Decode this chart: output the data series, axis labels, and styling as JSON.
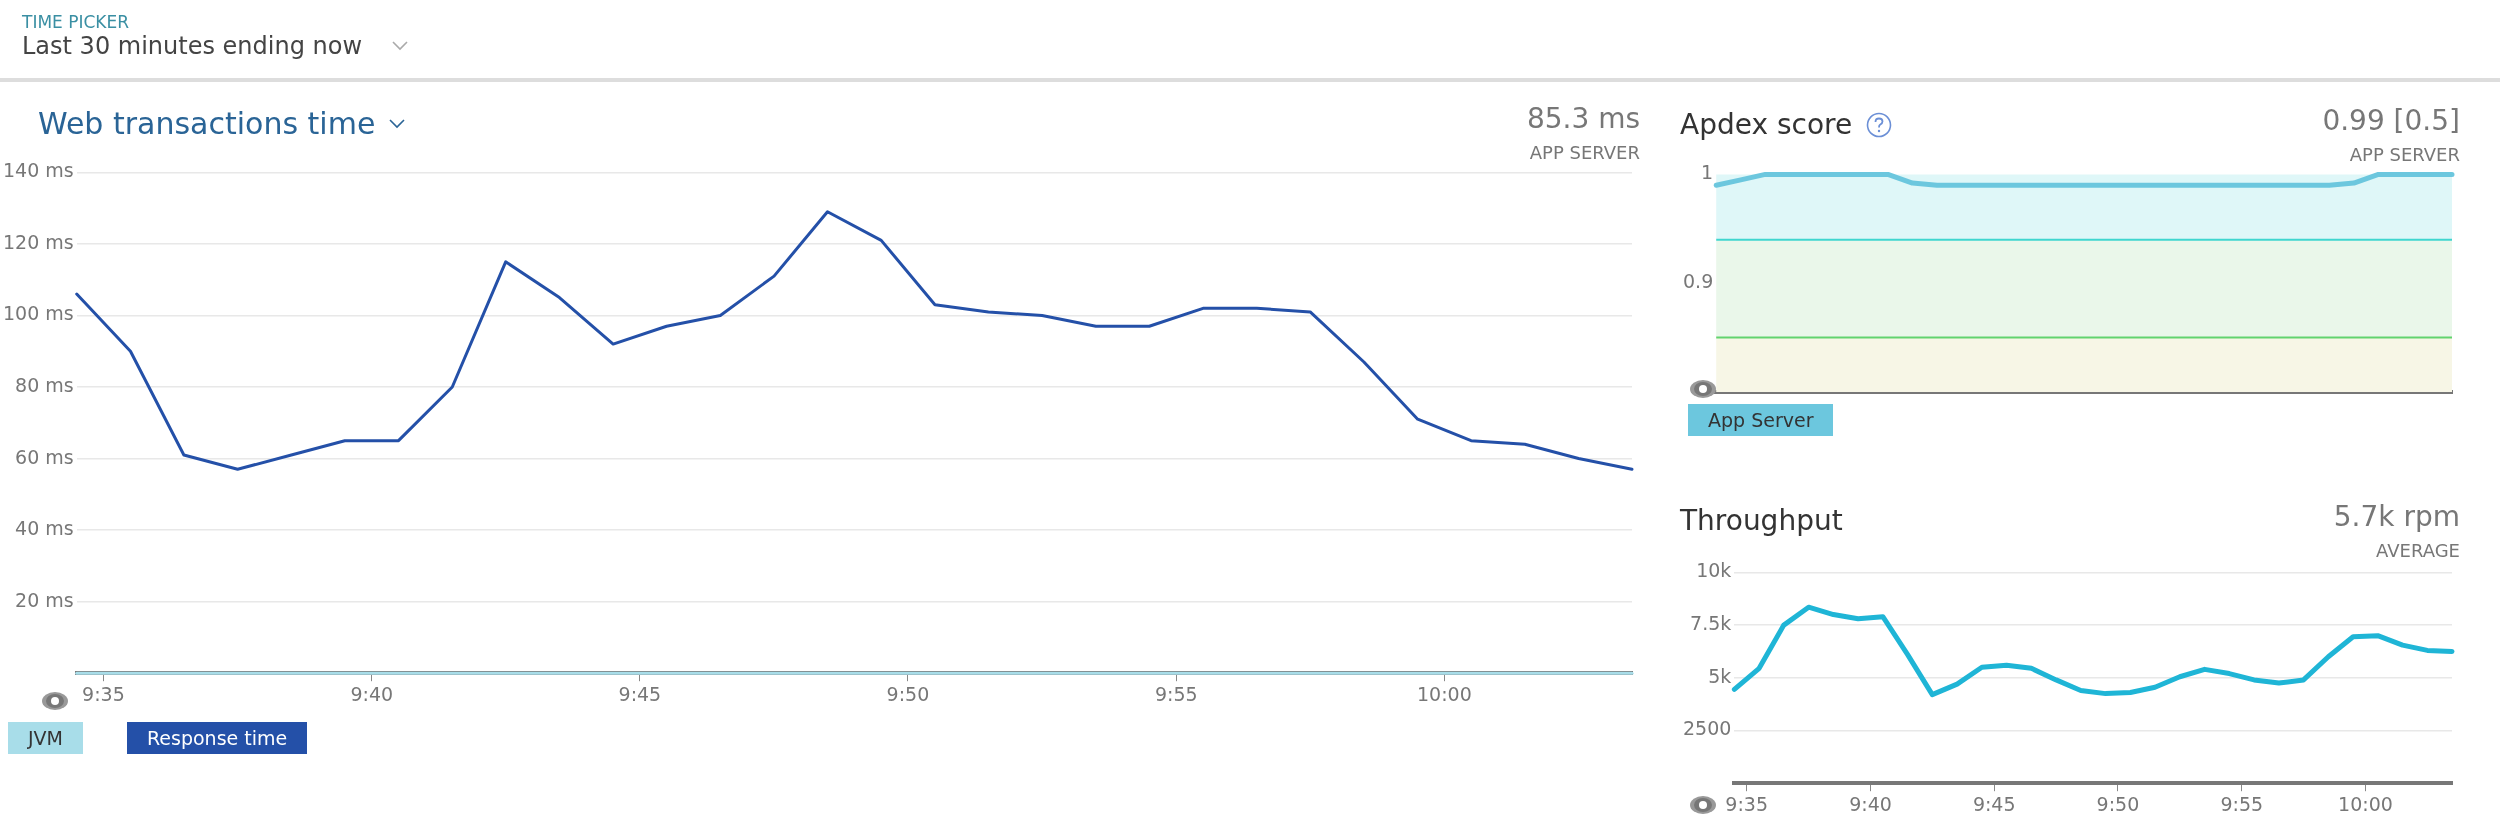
{
  "chart_data": [
    {
      "type": "other",
      "title": "TIME PICKER",
      "subtitle": "Last 30 minutes ending now"
    },
    {
      "type": "line",
      "title": "Web transactions time",
      "annotations": [
        "85.3 ms",
        "APP SERVER"
      ],
      "x": [
        9.575,
        9.5917,
        9.6083,
        9.625,
        9.6417,
        9.6583,
        9.675,
        9.6917,
        9.7083,
        9.725,
        9.7417,
        9.7583,
        9.775,
        9.7917,
        9.8083,
        9.825,
        9.8417,
        9.8583,
        9.875,
        9.8917,
        9.9083,
        9.925,
        9.9417,
        9.9583,
        9.975,
        9.9917,
        10.0083,
        10.025,
        10.0417,
        10.0583
      ],
      "xlim": [
        9.575,
        10.0583
      ],
      "xticks": [
        {
          "value": 9.5833,
          "label": "9:35"
        },
        {
          "value": 9.6667,
          "label": "9:40"
        },
        {
          "value": 9.75,
          "label": "9:45"
        },
        {
          "value": 9.8333,
          "label": "9:50"
        },
        {
          "value": 9.9167,
          "label": "9:55"
        },
        {
          "value": 10,
          "label": "10:00"
        }
      ],
      "ylim": [
        0,
        140
      ],
      "yticks": [
        {
          "value": 20,
          "label": "20 ms"
        },
        {
          "value": 40,
          "label": "40 ms"
        },
        {
          "value": 60,
          "label": "60 ms"
        },
        {
          "value": 80,
          "label": "80 ms"
        },
        {
          "value": 100,
          "label": "100 ms"
        },
        {
          "value": 120,
          "label": "120 ms"
        },
        {
          "value": 140,
          "label": "140 ms"
        }
      ],
      "grid": "y",
      "legend": "bottom left",
      "series": [
        {
          "name": "JVM",
          "color": "#a8dde9",
          "values": [
            0,
            0,
            0,
            0,
            0,
            0,
            0,
            0,
            0,
            0,
            0,
            0,
            0,
            0,
            0,
            0,
            0,
            0,
            0,
            0,
            0,
            0,
            0,
            0,
            0,
            0,
            0,
            0,
            0,
            0
          ]
        },
        {
          "name": "Response time",
          "color": "#2450a8",
          "values": [
            106,
            90,
            61,
            57,
            61,
            65,
            65,
            80,
            115,
            105,
            92,
            97,
            100,
            111,
            129,
            121,
            103,
            101,
            100,
            97,
            97,
            102,
            102,
            101,
            87,
            71,
            65,
            64,
            60,
            57
          ]
        }
      ]
    },
    {
      "type": "line",
      "title": "Apdex score",
      "annotations": [
        "0.99 [0.5]",
        "APP SERVER"
      ],
      "categories": [
        null,
        null,
        null,
        null,
        null,
        null,
        null,
        null,
        null,
        null,
        null,
        null,
        null,
        null,
        null,
        null,
        null,
        null,
        null,
        null,
        null,
        null,
        null,
        null,
        null,
        null,
        null,
        null,
        null,
        null,
        null
      ],
      "ylim": [
        0.8,
        1
      ],
      "yticks": [
        0.9,
        1
      ],
      "tick_labels": "y",
      "legend": "bottom left",
      "bands": [
        {
          "axis": "y",
          "from": 0.94,
          "to": 1,
          "color": "#dff7f8"
        },
        {
          "axis": "y",
          "from": 0.85,
          "to": 0.94,
          "color": "#eaf7ea"
        },
        {
          "axis": "y",
          "from": 0.8,
          "to": 0.85,
          "color": "#f7f6e6"
        }
      ],
      "ref_lines": [
        {
          "axis": "y",
          "value": 0.94,
          "color": "#3fd6cf"
        },
        {
          "axis": "y",
          "value": 0.85,
          "color": "#62d36e"
        }
      ],
      "series": [
        {
          "name": "App Server",
          "color": "#6cc7de",
          "values": [
            0.99,
            0.995,
            1,
            1,
            1,
            1,
            1,
            1,
            0.992,
            0.99,
            0.99,
            0.99,
            0.99,
            0.99,
            0.99,
            0.99,
            0.99,
            0.99,
            0.99,
            0.99,
            0.99,
            0.99,
            0.99,
            0.99,
            0.99,
            0.99,
            0.992,
            1,
            1,
            1,
            1
          ]
        }
      ]
    },
    {
      "type": "line",
      "title": "Throughput",
      "annotations": [
        "5.7k rpm",
        "AVERAGE"
      ],
      "x": [
        9.575,
        9.5917,
        9.6083,
        9.625,
        9.6417,
        9.6583,
        9.675,
        9.6917,
        9.7083,
        9.725,
        9.7417,
        9.7583,
        9.775,
        9.7917,
        9.8083,
        9.825,
        9.8417,
        9.8583,
        9.875,
        9.8917,
        9.9083,
        9.925,
        9.9417,
        9.9583,
        9.975,
        9.9917,
        10.0083,
        10.025,
        10.0417,
        10.0583
      ],
      "xlim": [
        9.575,
        10.0583
      ],
      "xticks": [
        {
          "value": 9.5833,
          "label": "9:35"
        },
        {
          "value": 9.6667,
          "label": "9:40"
        },
        {
          "value": 9.75,
          "label": "9:45"
        },
        {
          "value": 9.8333,
          "label": "9:50"
        },
        {
          "value": 9.9167,
          "label": "9:55"
        },
        {
          "value": 10,
          "label": "10:00"
        }
      ],
      "ylim": [
        0,
        10000
      ],
      "yticks": [
        2500,
        {
          "value": 5000,
          "label": "5k"
        },
        {
          "value": 7500,
          "label": "7.5k"
        },
        {
          "value": 10000,
          "label": "10k"
        }
      ],
      "grid": "y",
      "series": [
        {
          "color": "#1fb5d6",
          "values": [
            4450,
            5450,
            7500,
            8350,
            8000,
            7800,
            7900,
            6100,
            4200,
            4700,
            5500,
            5600,
            5450,
            4900,
            4400,
            4250,
            4300,
            4550,
            5050,
            5400,
            5200,
            4900,
            4750,
            4900,
            6000,
            6950,
            7000,
            6550,
            6300,
            6250
          ]
        }
      ]
    }
  ]
}
